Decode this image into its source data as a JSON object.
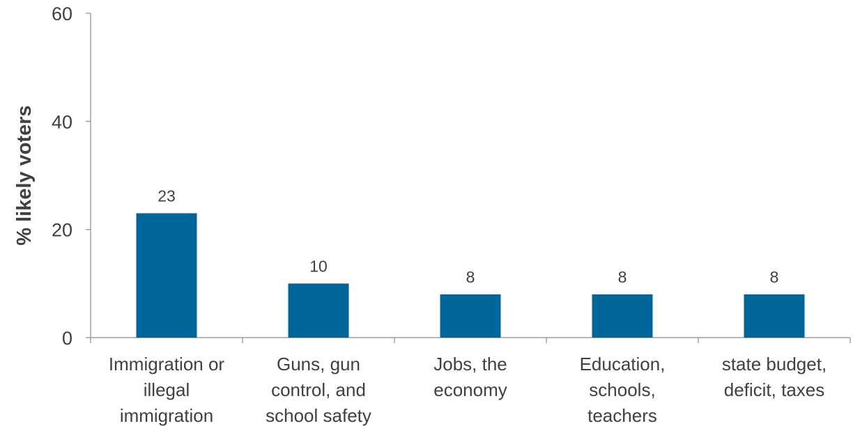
{
  "chart_data": {
    "type": "bar",
    "categories": [
      [
        "Immigration or",
        "illegal",
        "immigration"
      ],
      [
        "Guns, gun",
        "control, and",
        "school safety"
      ],
      [
        "Jobs, the",
        "economy"
      ],
      [
        "Education,",
        "schools,",
        "teachers"
      ],
      [
        "state budget,",
        "deficit, taxes"
      ]
    ],
    "values": [
      23,
      10,
      8,
      8,
      8
    ],
    "data_labels": [
      "23",
      "10",
      "8",
      "8",
      "8"
    ],
    "ylabel": "% likely voters",
    "ylim": [
      0,
      60
    ],
    "yticks": [
      0,
      20,
      40,
      60
    ],
    "ytick_labels": [
      "0",
      "20",
      "40",
      "60"
    ],
    "grid": false,
    "legend": "none",
    "bar_color": "#006699"
  }
}
